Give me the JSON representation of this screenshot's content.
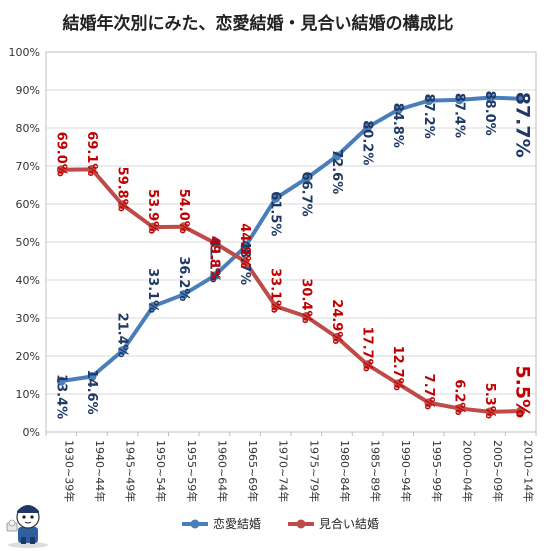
{
  "chart_data": {
    "type": "line",
    "title": "結婚年次別にみた、恋愛結婚・見合い結婚の構成比",
    "xlabel": "",
    "ylabel": "",
    "categories": [
      "1930~39年",
      "1940~44年",
      "1945~49年",
      "1950~54年",
      "1955~59年",
      "1960~64年",
      "1965~69年",
      "1970~74年",
      "1975~79年",
      "1980~84年",
      "1985~89年",
      "1990~94年",
      "1995~99年",
      "2000~04年",
      "2005~09年",
      "2010~14年"
    ],
    "ylim": [
      0,
      100
    ],
    "yticks": [
      "0%",
      "10%",
      "20%",
      "30%",
      "40%",
      "50%",
      "60%",
      "70%",
      "80%",
      "90%",
      "100%"
    ],
    "grid": true,
    "legend_position": "bottom",
    "series": [
      {
        "name": "恋愛結婚",
        "color": "#4a7ebb",
        "label_color": "#1f3864",
        "values": [
          13.4,
          14.6,
          21.4,
          33.1,
          36.2,
          41.1,
          48.7,
          61.5,
          66.7,
          72.6,
          80.2,
          84.8,
          87.2,
          87.4,
          88.0,
          87.7
        ],
        "labels": [
          "13.4%",
          "14.6%",
          "21.4%",
          "33.1%",
          "36.2%",
          "41.1%",
          "48.7%",
          "61.5%",
          "66.7%",
          "72.6%",
          "80.2%",
          "84.8%",
          "87.2%",
          "87.4%",
          "88.0%",
          "87.7%"
        ]
      },
      {
        "name": "見合い結婚",
        "color": "#be4b48",
        "label_color": "#c00000",
        "values": [
          69.0,
          69.1,
          59.8,
          53.9,
          54.0,
          49.8,
          44.9,
          33.1,
          30.4,
          24.9,
          17.7,
          12.7,
          7.7,
          6.2,
          5.3,
          5.5
        ],
        "labels": [
          "69.0%",
          "69.1%",
          "59.8%",
          "53.9%",
          "54.0%",
          "49.8%",
          "44.9%",
          "33.1%",
          "30.4%",
          "24.9%",
          "17.7%",
          "12.7%",
          "7.7%",
          "6.2%",
          "5.3%",
          "5.5%"
        ]
      }
    ]
  }
}
